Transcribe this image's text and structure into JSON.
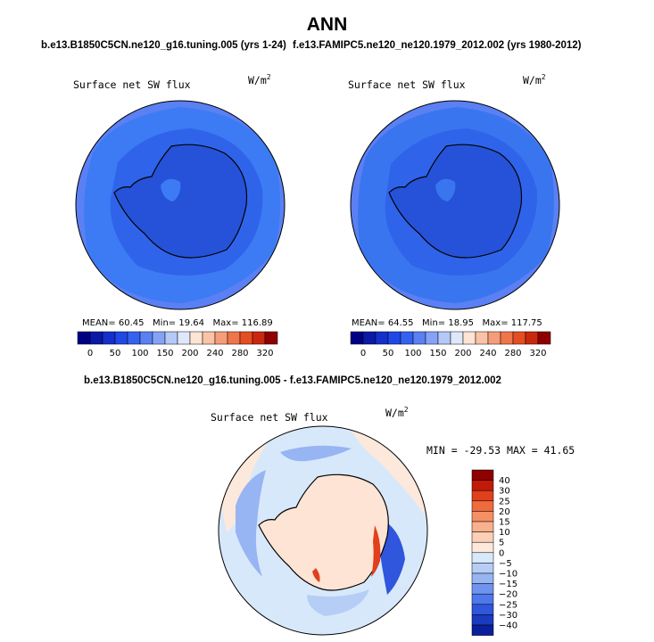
{
  "page": {
    "title": "ANN",
    "case_titles": {
      "left": "b.e13.B1850C5CN.ne120_g16.tuning.005 (yrs 1-24)",
      "right": "f.e13.FAMIPC5.ne120_ne120.1979_2012.002 (yrs 1980-2012)"
    },
    "diff_title": "b.e13.B1850C5CN.ne120_g16.tuning.005 - f.e13.FAMIPC5.ne120_ne120.1979_2012.002"
  },
  "colors": {
    "ocean_left": "#3d7bf4",
    "ocean_right": "#3a75f0",
    "diff_background": "#d8e8fb",
    "antarctica_diff": "#fde4d4",
    "coastline": "#000000"
  },
  "chart_data": [
    {
      "type": "heatmap",
      "projection": "south polar stereographic",
      "title": "Surface net SW flux",
      "units_base": "W/m",
      "units_exp": "2",
      "stats": {
        "mean_label": "MEAN=",
        "mean": "60.45",
        "min_label": "Min=",
        "min": "19.64",
        "max_label": "Max=",
        "max": "116.89"
      },
      "colorbar": {
        "orientation": "horizontal",
        "colors": [
          "#000085",
          "#0a1aa6",
          "#1430cc",
          "#2048e6",
          "#3462f0",
          "#5a80f3",
          "#85a3f5",
          "#b4c9f7",
          "#dfe8fa",
          "#fde4d4",
          "#f9c3a7",
          "#f59d79",
          "#ef7648",
          "#e54e22",
          "#c9280e",
          "#8f0000"
        ],
        "tick_labels": [
          "0",
          "50",
          "100",
          "150",
          "200",
          "240",
          "280",
          "320"
        ],
        "levels": [
          0,
          25,
          50,
          75,
          100,
          125,
          150,
          175,
          200,
          220,
          240,
          260,
          280,
          300,
          320
        ]
      }
    },
    {
      "type": "heatmap",
      "projection": "south polar stereographic",
      "title": "Surface net SW flux",
      "units_base": "W/m",
      "units_exp": "2",
      "stats": {
        "mean_label": "MEAN=",
        "mean": "64.55",
        "min_label": "Min=",
        "min": "18.95",
        "max_label": "Max=",
        "max": "117.75"
      },
      "colorbar": {
        "orientation": "horizontal",
        "colors": [
          "#000085",
          "#0a1aa6",
          "#1430cc",
          "#2048e6",
          "#3462f0",
          "#5a80f3",
          "#85a3f5",
          "#b4c9f7",
          "#dfe8fa",
          "#fde4d4",
          "#f9c3a7",
          "#f59d79",
          "#ef7648",
          "#e54e22",
          "#c9280e",
          "#8f0000"
        ],
        "tick_labels": [
          "0",
          "50",
          "100",
          "150",
          "200",
          "240",
          "280",
          "320"
        ],
        "levels": [
          0,
          25,
          50,
          75,
          100,
          125,
          150,
          175,
          200,
          220,
          240,
          260,
          280,
          300,
          320
        ]
      }
    },
    {
      "type": "heatmap",
      "projection": "south polar stereographic",
      "title": "Surface net SW flux",
      "units_base": "W/m",
      "units_exp": "2",
      "stats": {
        "min_label": "MIN =",
        "min": "-29.53",
        "max_label": "MAX =",
        "max": "41.65"
      },
      "colorbar": {
        "orientation": "vertical",
        "colors": [
          "#8f0000",
          "#c01a08",
          "#e0401c",
          "#ef6a3c",
          "#f58f64",
          "#f9b08c",
          "#fcd0b6",
          "#fde8dc",
          "#d8e8fb",
          "#b6cef6",
          "#97b4f3",
          "#6f94f0",
          "#4f78ec",
          "#2f56dc",
          "#1a3bbf",
          "#0a1f9b"
        ],
        "tick_labels": [
          "40",
          "30",
          "25",
          "20",
          "15",
          "10",
          "5",
          "0",
          "−5",
          "−10",
          "−15",
          "−20",
          "−25",
          "−30",
          "−40"
        ],
        "levels": [
          40,
          30,
          25,
          20,
          15,
          10,
          5,
          0,
          -5,
          -10,
          -15,
          -20,
          -25,
          -30,
          -40
        ]
      }
    }
  ]
}
